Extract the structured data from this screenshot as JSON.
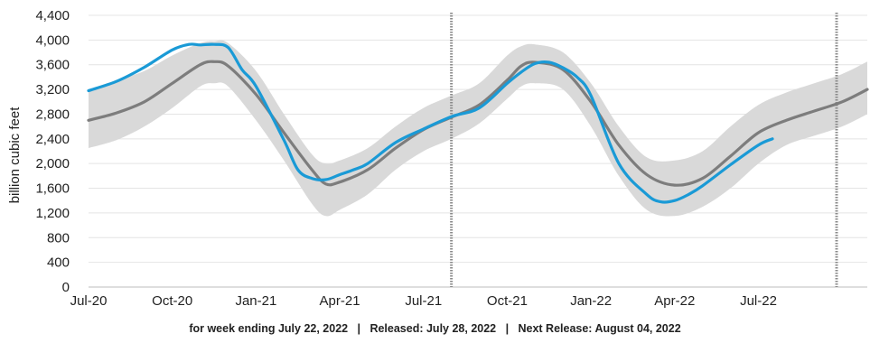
{
  "chart_data": {
    "type": "area",
    "ylabel": "billion cubic feet",
    "ylim": [
      0,
      4400
    ],
    "yticks": [
      0,
      400,
      800,
      1200,
      1600,
      2000,
      2400,
      2800,
      3200,
      3600,
      4000,
      4400
    ],
    "ytick_labels": [
      "0",
      "400",
      "800",
      "1,200",
      "1,600",
      "2,000",
      "2,400",
      "2,800",
      "3,200",
      "3,600",
      "4,000",
      "4,400"
    ],
    "x_unit": "month offset from Jul-20",
    "xlim": [
      0,
      27.9
    ],
    "xticks": [
      0,
      3,
      6,
      9,
      12,
      15,
      18,
      21,
      24
    ],
    "xtick_labels": [
      "Jul-20",
      "Oct-20",
      "Jan-21",
      "Apr-21",
      "Jul-21",
      "Oct-21",
      "Jan-22",
      "Apr-22",
      "Jul-22"
    ],
    "grid": true,
    "legend": "none",
    "vertical_markers": [
      13.0,
      26.8
    ],
    "colors": {
      "current": "#1a9ad6",
      "average": "#7d7d7d",
      "range": "#d9d9d9",
      "marker": "#8a8a8a"
    },
    "series": [
      {
        "role": "current",
        "x": [
          0,
          1,
          2,
          3,
          3.6,
          4,
          4.5,
          5,
          5.5,
          6,
          7,
          7.5,
          8,
          8.5,
          9,
          9.5,
          10,
          11,
          12,
          13,
          14,
          15,
          15.5,
          16,
          16.5,
          17,
          17.5,
          18,
          19,
          20,
          20.5,
          21,
          21.5,
          22,
          23,
          24,
          24.5
        ],
        "y": [
          3180,
          3330,
          3560,
          3840,
          3930,
          3920,
          3930,
          3880,
          3520,
          3250,
          2380,
          1900,
          1760,
          1740,
          1820,
          1900,
          2000,
          2340,
          2560,
          2760,
          2900,
          3300,
          3480,
          3620,
          3640,
          3550,
          3400,
          3100,
          2000,
          1500,
          1380,
          1400,
          1500,
          1640,
          1980,
          2300,
          2400
        ]
      },
      {
        "role": "five-year-average",
        "x": [
          0,
          1,
          2,
          3,
          4,
          4.5,
          5,
          6,
          7,
          8,
          8.5,
          9,
          10,
          11,
          12,
          13,
          14,
          15,
          15.5,
          16,
          17,
          18,
          19,
          20,
          21,
          22,
          23,
          24,
          25,
          26,
          27,
          27.9
        ],
        "y": [
          2700,
          2820,
          3000,
          3300,
          3600,
          3650,
          3580,
          3120,
          2500,
          1900,
          1670,
          1700,
          1900,
          2250,
          2550,
          2750,
          2950,
          3350,
          3580,
          3640,
          3520,
          3000,
          2300,
          1820,
          1650,
          1760,
          2120,
          2500,
          2700,
          2850,
          3000,
          3200
        ]
      },
      {
        "role": "five-year-range-upper",
        "x": [
          0,
          1,
          2,
          3,
          4,
          4.5,
          5,
          6,
          7,
          8,
          8.5,
          9,
          10,
          11,
          12,
          13,
          14,
          15,
          15.5,
          16,
          17,
          18,
          19,
          20,
          21,
          22,
          23,
          24,
          25,
          26,
          27,
          27.9
        ],
        "y": [
          3200,
          3350,
          3500,
          3750,
          3950,
          3980,
          3950,
          3500,
          2800,
          2150,
          2000,
          2050,
          2250,
          2600,
          2900,
          3100,
          3300,
          3750,
          3900,
          3930,
          3800,
          3300,
          2600,
          2100,
          2050,
          2200,
          2600,
          2950,
          3150,
          3300,
          3450,
          3650
        ]
      },
      {
        "role": "five-year-range-lower",
        "x": [
          0,
          1,
          2,
          3,
          4,
          4.5,
          5,
          6,
          7,
          8,
          8.5,
          9,
          10,
          11,
          12,
          13,
          14,
          15,
          15.5,
          16,
          17,
          18,
          19,
          20,
          21,
          22,
          23,
          24,
          25,
          26,
          27,
          27.9
        ],
        "y": [
          2250,
          2380,
          2600,
          2900,
          3250,
          3300,
          3250,
          2700,
          2050,
          1350,
          1150,
          1250,
          1500,
          1900,
          2200,
          2400,
          2650,
          3050,
          3250,
          3300,
          3200,
          2600,
          1800,
          1250,
          1150,
          1300,
          1600,
          2000,
          2300,
          2450,
          2600,
          2800
        ]
      }
    ]
  },
  "footer": {
    "week": "for week ending July 22, 2022",
    "released": "Released: July 28, 2022",
    "next": "Next Release: August 04, 2022",
    "separator": "|"
  }
}
